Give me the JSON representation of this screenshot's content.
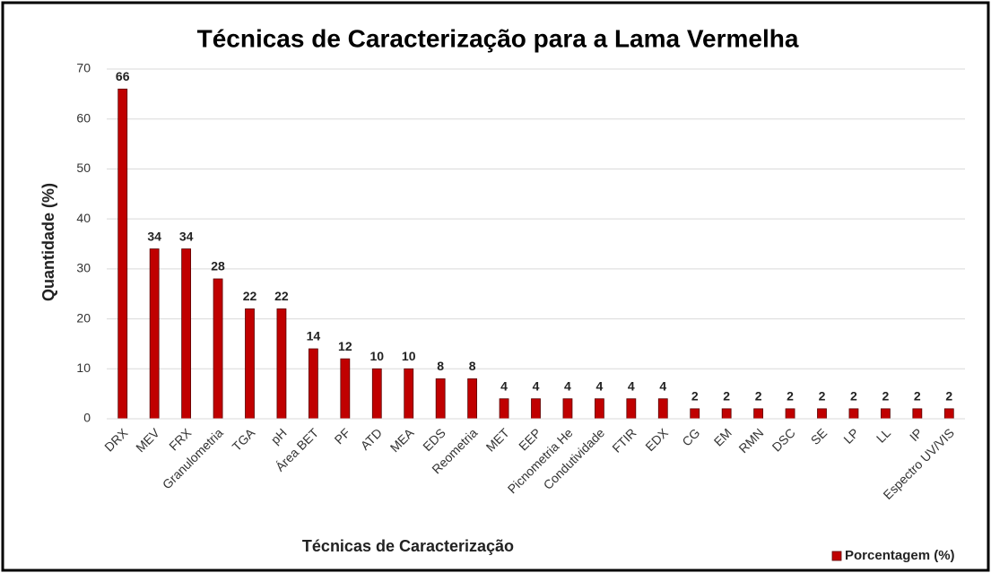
{
  "chart_data": {
    "type": "bar",
    "title": "Técnicas de Caracterização para a Lama Vermelha",
    "x_label": "Técnicas de Caracterização",
    "y_label": "Quantidade (%)",
    "categories": [
      "DRX",
      "MEV",
      "FRX",
      "Granulometria",
      "TGA",
      "pH",
      "Área BET",
      "PF",
      "ATD",
      "MEA",
      "EDS",
      "Reometria",
      "MET",
      "EEP",
      "Picnometria He",
      "Condutividade",
      "FTIR",
      "EDX",
      "CG",
      "EM",
      "RMN",
      "DSC",
      "SE",
      "LP",
      "LL",
      "IP",
      "Espectro UV/VIS"
    ],
    "series": [
      {
        "name": "Porcentagem (%)",
        "color": "#c00000",
        "values": [
          66,
          34,
          34,
          28,
          22,
          22,
          14,
          12,
          10,
          10,
          8,
          8,
          4,
          4,
          4,
          4,
          4,
          4,
          2,
          2,
          2,
          2,
          2,
          2,
          2,
          2,
          2
        ]
      }
    ],
    "ylim": [
      0,
      70
    ],
    "yticks": [
      0,
      10,
      20,
      30,
      40,
      50,
      60,
      70
    ],
    "grid": true,
    "legend": "lower right"
  }
}
